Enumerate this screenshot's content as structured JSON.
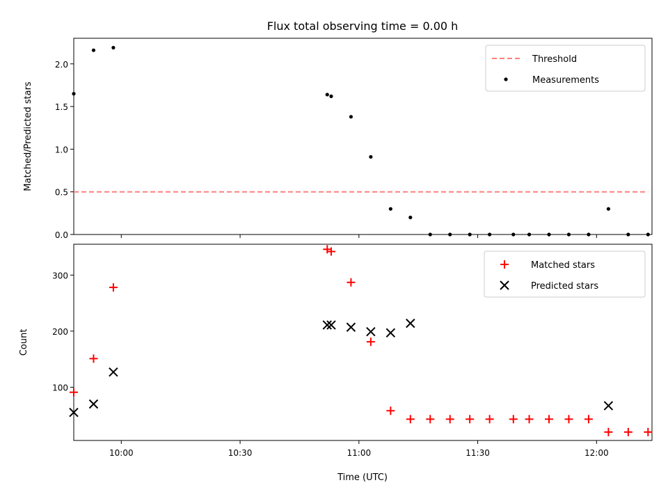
{
  "chart_data": [
    {
      "type": "scatter",
      "title": "Flux total observing time = 0.00 h",
      "xlabel": "",
      "ylabel": "Matched/Predicted stars",
      "xlim": [
        "09:48",
        "12:14"
      ],
      "ylim": [
        0,
        2.3
      ],
      "x_ticks": [
        "10:00",
        "10:30",
        "11:00",
        "11:30",
        "12:00"
      ],
      "y_ticks": [
        "0.0",
        "0.5",
        "1.0",
        "1.5",
        "2.0"
      ],
      "legend": {
        "placement": "top-right",
        "entries": [
          "Threshold",
          "Measurements"
        ]
      },
      "threshold": {
        "name": "Threshold",
        "value": 0.5,
        "x_start": "09:48",
        "x_end": "12:13",
        "color": "#ff7f7f",
        "style": "dashed"
      },
      "series": [
        {
          "name": "Measurements",
          "marker": "dot",
          "color": "#000000",
          "points": [
            {
              "x": "09:48",
              "y": 1.65
            },
            {
              "x": "09:53",
              "y": 2.16
            },
            {
              "x": "09:58",
              "y": 2.19
            },
            {
              "x": "10:52",
              "y": 1.64
            },
            {
              "x": "10:53",
              "y": 1.62
            },
            {
              "x": "10:58",
              "y": 1.38
            },
            {
              "x": "11:03",
              "y": 0.91
            },
            {
              "x": "11:08",
              "y": 0.3
            },
            {
              "x": "11:13",
              "y": 0.2
            },
            {
              "x": "11:18",
              "y": 0.0
            },
            {
              "x": "11:23",
              "y": 0.0
            },
            {
              "x": "11:28",
              "y": 0.0
            },
            {
              "x": "11:33",
              "y": 0.0
            },
            {
              "x": "11:39",
              "y": 0.0
            },
            {
              "x": "11:43",
              "y": 0.0
            },
            {
              "x": "11:48",
              "y": 0.0
            },
            {
              "x": "11:53",
              "y": 0.0
            },
            {
              "x": "11:58",
              "y": 0.0
            },
            {
              "x": "12:03",
              "y": 0.3
            },
            {
              "x": "12:08",
              "y": 0.0
            },
            {
              "x": "12:13",
              "y": 0.0
            }
          ]
        }
      ]
    },
    {
      "type": "scatter",
      "title": "",
      "xlabel": "Time (UTC)",
      "ylabel": "Count",
      "xlim": [
        "09:48",
        "12:14"
      ],
      "ylim": [
        5,
        355
      ],
      "x_ticks": [
        "10:00",
        "10:30",
        "11:00",
        "11:30",
        "12:00"
      ],
      "y_ticks": [
        "100",
        "200",
        "300"
      ],
      "legend": {
        "placement": "top-right",
        "entries": [
          "Matched stars",
          "Predicted stars"
        ]
      },
      "series": [
        {
          "name": "Matched stars",
          "marker": "plus",
          "color": "#ff0000",
          "points": [
            {
              "x": "09:48",
              "y": 91
            },
            {
              "x": "09:53",
              "y": 151
            },
            {
              "x": "09:58",
              "y": 278
            },
            {
              "x": "10:52",
              "y": 346
            },
            {
              "x": "10:53",
              "y": 342
            },
            {
              "x": "10:58",
              "y": 287
            },
            {
              "x": "11:03",
              "y": 181
            },
            {
              "x": "11:08",
              "y": 58
            },
            {
              "x": "11:13",
              "y": 43
            },
            {
              "x": "11:18",
              "y": 43
            },
            {
              "x": "11:23",
              "y": 43
            },
            {
              "x": "11:28",
              "y": 43
            },
            {
              "x": "11:33",
              "y": 43
            },
            {
              "x": "11:39",
              "y": 43
            },
            {
              "x": "11:43",
              "y": 43
            },
            {
              "x": "11:48",
              "y": 43
            },
            {
              "x": "11:53",
              "y": 43
            },
            {
              "x": "11:58",
              "y": 43
            },
            {
              "x": "12:03",
              "y": 20
            },
            {
              "x": "12:08",
              "y": 20
            },
            {
              "x": "12:13",
              "y": 20
            }
          ]
        },
        {
          "name": "Predicted stars",
          "marker": "x",
          "color": "#000000",
          "points": [
            {
              "x": "09:48",
              "y": 55
            },
            {
              "x": "09:53",
              "y": 70
            },
            {
              "x": "09:58",
              "y": 127
            },
            {
              "x": "10:52",
              "y": 211
            },
            {
              "x": "10:53",
              "y": 211
            },
            {
              "x": "10:58",
              "y": 207
            },
            {
              "x": "11:03",
              "y": 199
            },
            {
              "x": "11:08",
              "y": 197
            },
            {
              "x": "11:13",
              "y": 214
            },
            {
              "x": "12:03",
              "y": 67
            }
          ]
        }
      ]
    }
  ]
}
